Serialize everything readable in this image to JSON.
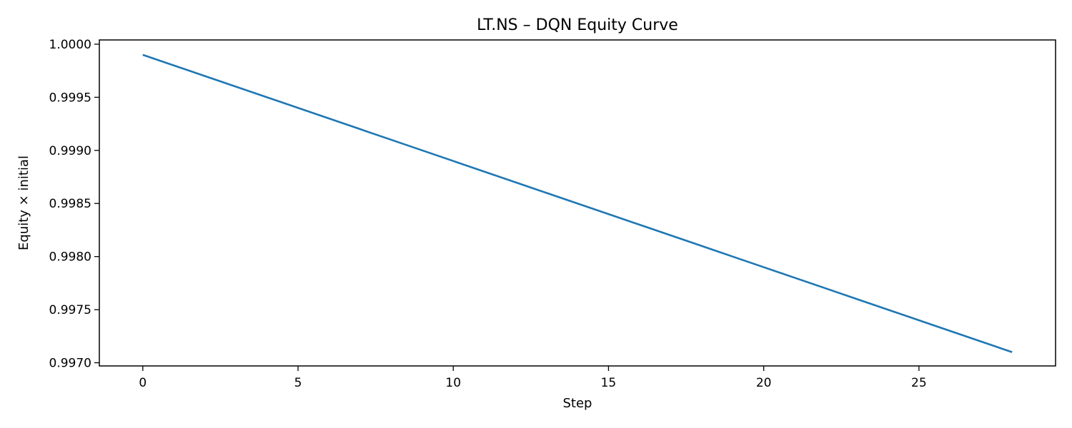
{
  "chart_data": {
    "type": "line",
    "title": "LT.NS – DQN Equity Curve",
    "xlabel": "Step",
    "ylabel": "Equity × initial",
    "xlim": [
      -1.4,
      29.4
    ],
    "ylim": [
      0.99697,
      1.00004
    ],
    "xticks": [
      0,
      5,
      10,
      15,
      20,
      25
    ],
    "yticks": [
      0.997,
      0.9975,
      0.998,
      0.9985,
      0.999,
      0.9995,
      1.0
    ],
    "ytick_labels": [
      "0.9970",
      "0.9975",
      "0.9980",
      "0.9985",
      "0.9990",
      "0.9995",
      "1.0000"
    ],
    "grid": false,
    "legend": "none",
    "series": [
      {
        "color": "#1f77b4",
        "x": [
          0,
          1,
          2,
          3,
          4,
          5,
          6,
          7,
          8,
          9,
          10,
          11,
          12,
          13,
          14,
          15,
          16,
          17,
          18,
          19,
          20,
          21,
          22,
          23,
          24,
          25,
          26,
          27,
          28
        ],
        "values": [
          0.9999,
          0.9998,
          0.9997,
          0.9996,
          0.9995,
          0.9994,
          0.9993,
          0.9992,
          0.9991,
          0.999,
          0.9989,
          0.9988,
          0.9987,
          0.9986,
          0.9985,
          0.9984,
          0.9983,
          0.9982,
          0.9981,
          0.998,
          0.9979,
          0.9978,
          0.9977,
          0.9976,
          0.9975,
          0.9974,
          0.9973,
          0.9972,
          0.9971
        ]
      }
    ]
  }
}
